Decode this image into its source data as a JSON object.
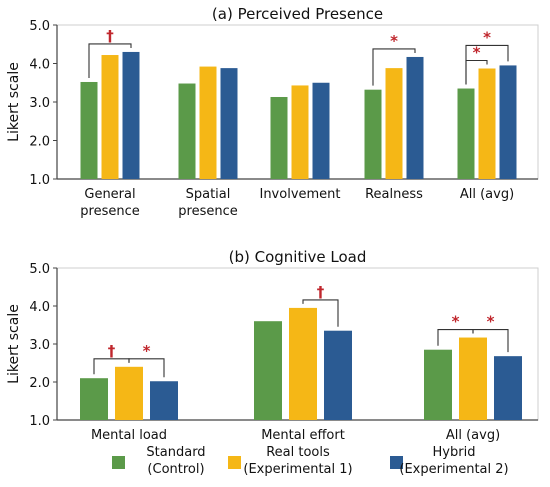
{
  "colors": {
    "standard": "#5b9a49",
    "real_tools": "#f5b716",
    "hybrid": "#2b5b93",
    "significance": "#c0272d",
    "axis": "#444444",
    "bracket": "#333333"
  },
  "chart_data": [
    {
      "type": "bar",
      "title": "(a) Perceived Presence",
      "ylabel": "Likert scale",
      "ylim": [
        1.0,
        5.0
      ],
      "yticks": [
        "1.0",
        "2.0",
        "3.0",
        "4.0",
        "5.0"
      ],
      "categories": [
        [
          "General",
          "presence"
        ],
        [
          "Spatial",
          "presence"
        ],
        [
          "Involvement"
        ],
        [
          "Realness"
        ],
        [
          "All (avg)"
        ]
      ],
      "series": [
        {
          "name": "Standard (Control)",
          "color_key": "standard",
          "values": [
            3.52,
            3.48,
            3.13,
            3.32,
            3.35
          ]
        },
        {
          "name": "Real tools (Experimental 1)",
          "color_key": "real_tools",
          "values": [
            4.22,
            3.92,
            3.43,
            3.88,
            3.87
          ]
        },
        {
          "name": "Hybrid (Experimental 2)",
          "color_key": "hybrid",
          "values": [
            4.3,
            3.88,
            3.5,
            4.17,
            3.95
          ]
        }
      ],
      "significance": [
        {
          "category": 0,
          "from": 0,
          "to": 2,
          "symbol": "†"
        },
        {
          "category": 3,
          "from": 0,
          "to": 2,
          "symbol": "*"
        },
        {
          "category": 4,
          "from": 0,
          "to": 1,
          "symbol": "*"
        },
        {
          "category": 4,
          "from": 0,
          "to": 2,
          "symbol": "*"
        }
      ]
    },
    {
      "type": "bar",
      "title": "(b) Cognitive Load",
      "ylabel": "Likert scale",
      "ylim": [
        1.0,
        5.0
      ],
      "yticks": [
        "1.0",
        "2.0",
        "3.0",
        "4.0",
        "5.0"
      ],
      "categories": [
        [
          "Mental load"
        ],
        [
          "Mental effort"
        ],
        [
          "All (avg)"
        ]
      ],
      "series": [
        {
          "name": "Standard (Control)",
          "color_key": "standard",
          "values": [
            2.1,
            3.6,
            2.85
          ]
        },
        {
          "name": "Real tools (Experimental 1)",
          "color_key": "real_tools",
          "values": [
            2.4,
            3.95,
            3.17
          ]
        },
        {
          "name": "Hybrid (Experimental 2)",
          "color_key": "hybrid",
          "values": [
            2.02,
            3.35,
            2.68
          ]
        }
      ],
      "significance": [
        {
          "category": 0,
          "from": 0,
          "to": 1,
          "symbol": "†"
        },
        {
          "category": 0,
          "from": 1,
          "to": 2,
          "symbol": "*"
        },
        {
          "category": 1,
          "from": 1,
          "to": 2,
          "symbol": "†"
        },
        {
          "category": 2,
          "from": 0,
          "to": 1,
          "symbol": "*"
        },
        {
          "category": 2,
          "from": 1,
          "to": 2,
          "symbol": "*"
        }
      ]
    }
  ],
  "legend": [
    {
      "color_key": "standard",
      "lines": [
        "Standard",
        "(Control)"
      ]
    },
    {
      "color_key": "real_tools",
      "lines": [
        "Real tools",
        "(Experimental 1)"
      ]
    },
    {
      "color_key": "hybrid",
      "lines": [
        "Hybrid",
        "(Experimental 2)"
      ]
    }
  ]
}
